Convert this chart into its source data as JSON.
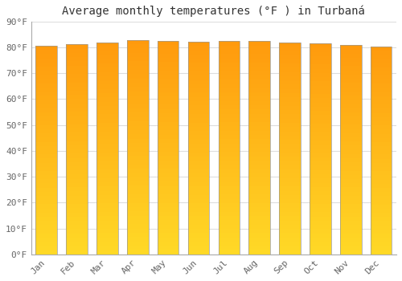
{
  "title": "Average monthly temperatures (°F ) in Turbaná",
  "months": [
    "Jan",
    "Feb",
    "Mar",
    "Apr",
    "May",
    "Jun",
    "Jul",
    "Aug",
    "Sep",
    "Oct",
    "Nov",
    "Dec"
  ],
  "values": [
    80.6,
    81.1,
    82.0,
    82.9,
    82.6,
    82.2,
    82.4,
    82.4,
    82.0,
    81.5,
    80.8,
    80.4
  ],
  "bar_color_mid": "#FFAA00",
  "bar_color_bright": "#FFD040",
  "bar_edge_color": "#999999",
  "background_color": "#ffffff",
  "plot_bg_color": "#ffffff",
  "ylim": [
    0,
    90
  ],
  "yticks": [
    0,
    10,
    20,
    30,
    40,
    50,
    60,
    70,
    80,
    90
  ],
  "grid_color": "#dddddd",
  "title_fontsize": 10,
  "tick_fontsize": 8,
  "tick_color": "#666666",
  "bar_width": 0.7
}
